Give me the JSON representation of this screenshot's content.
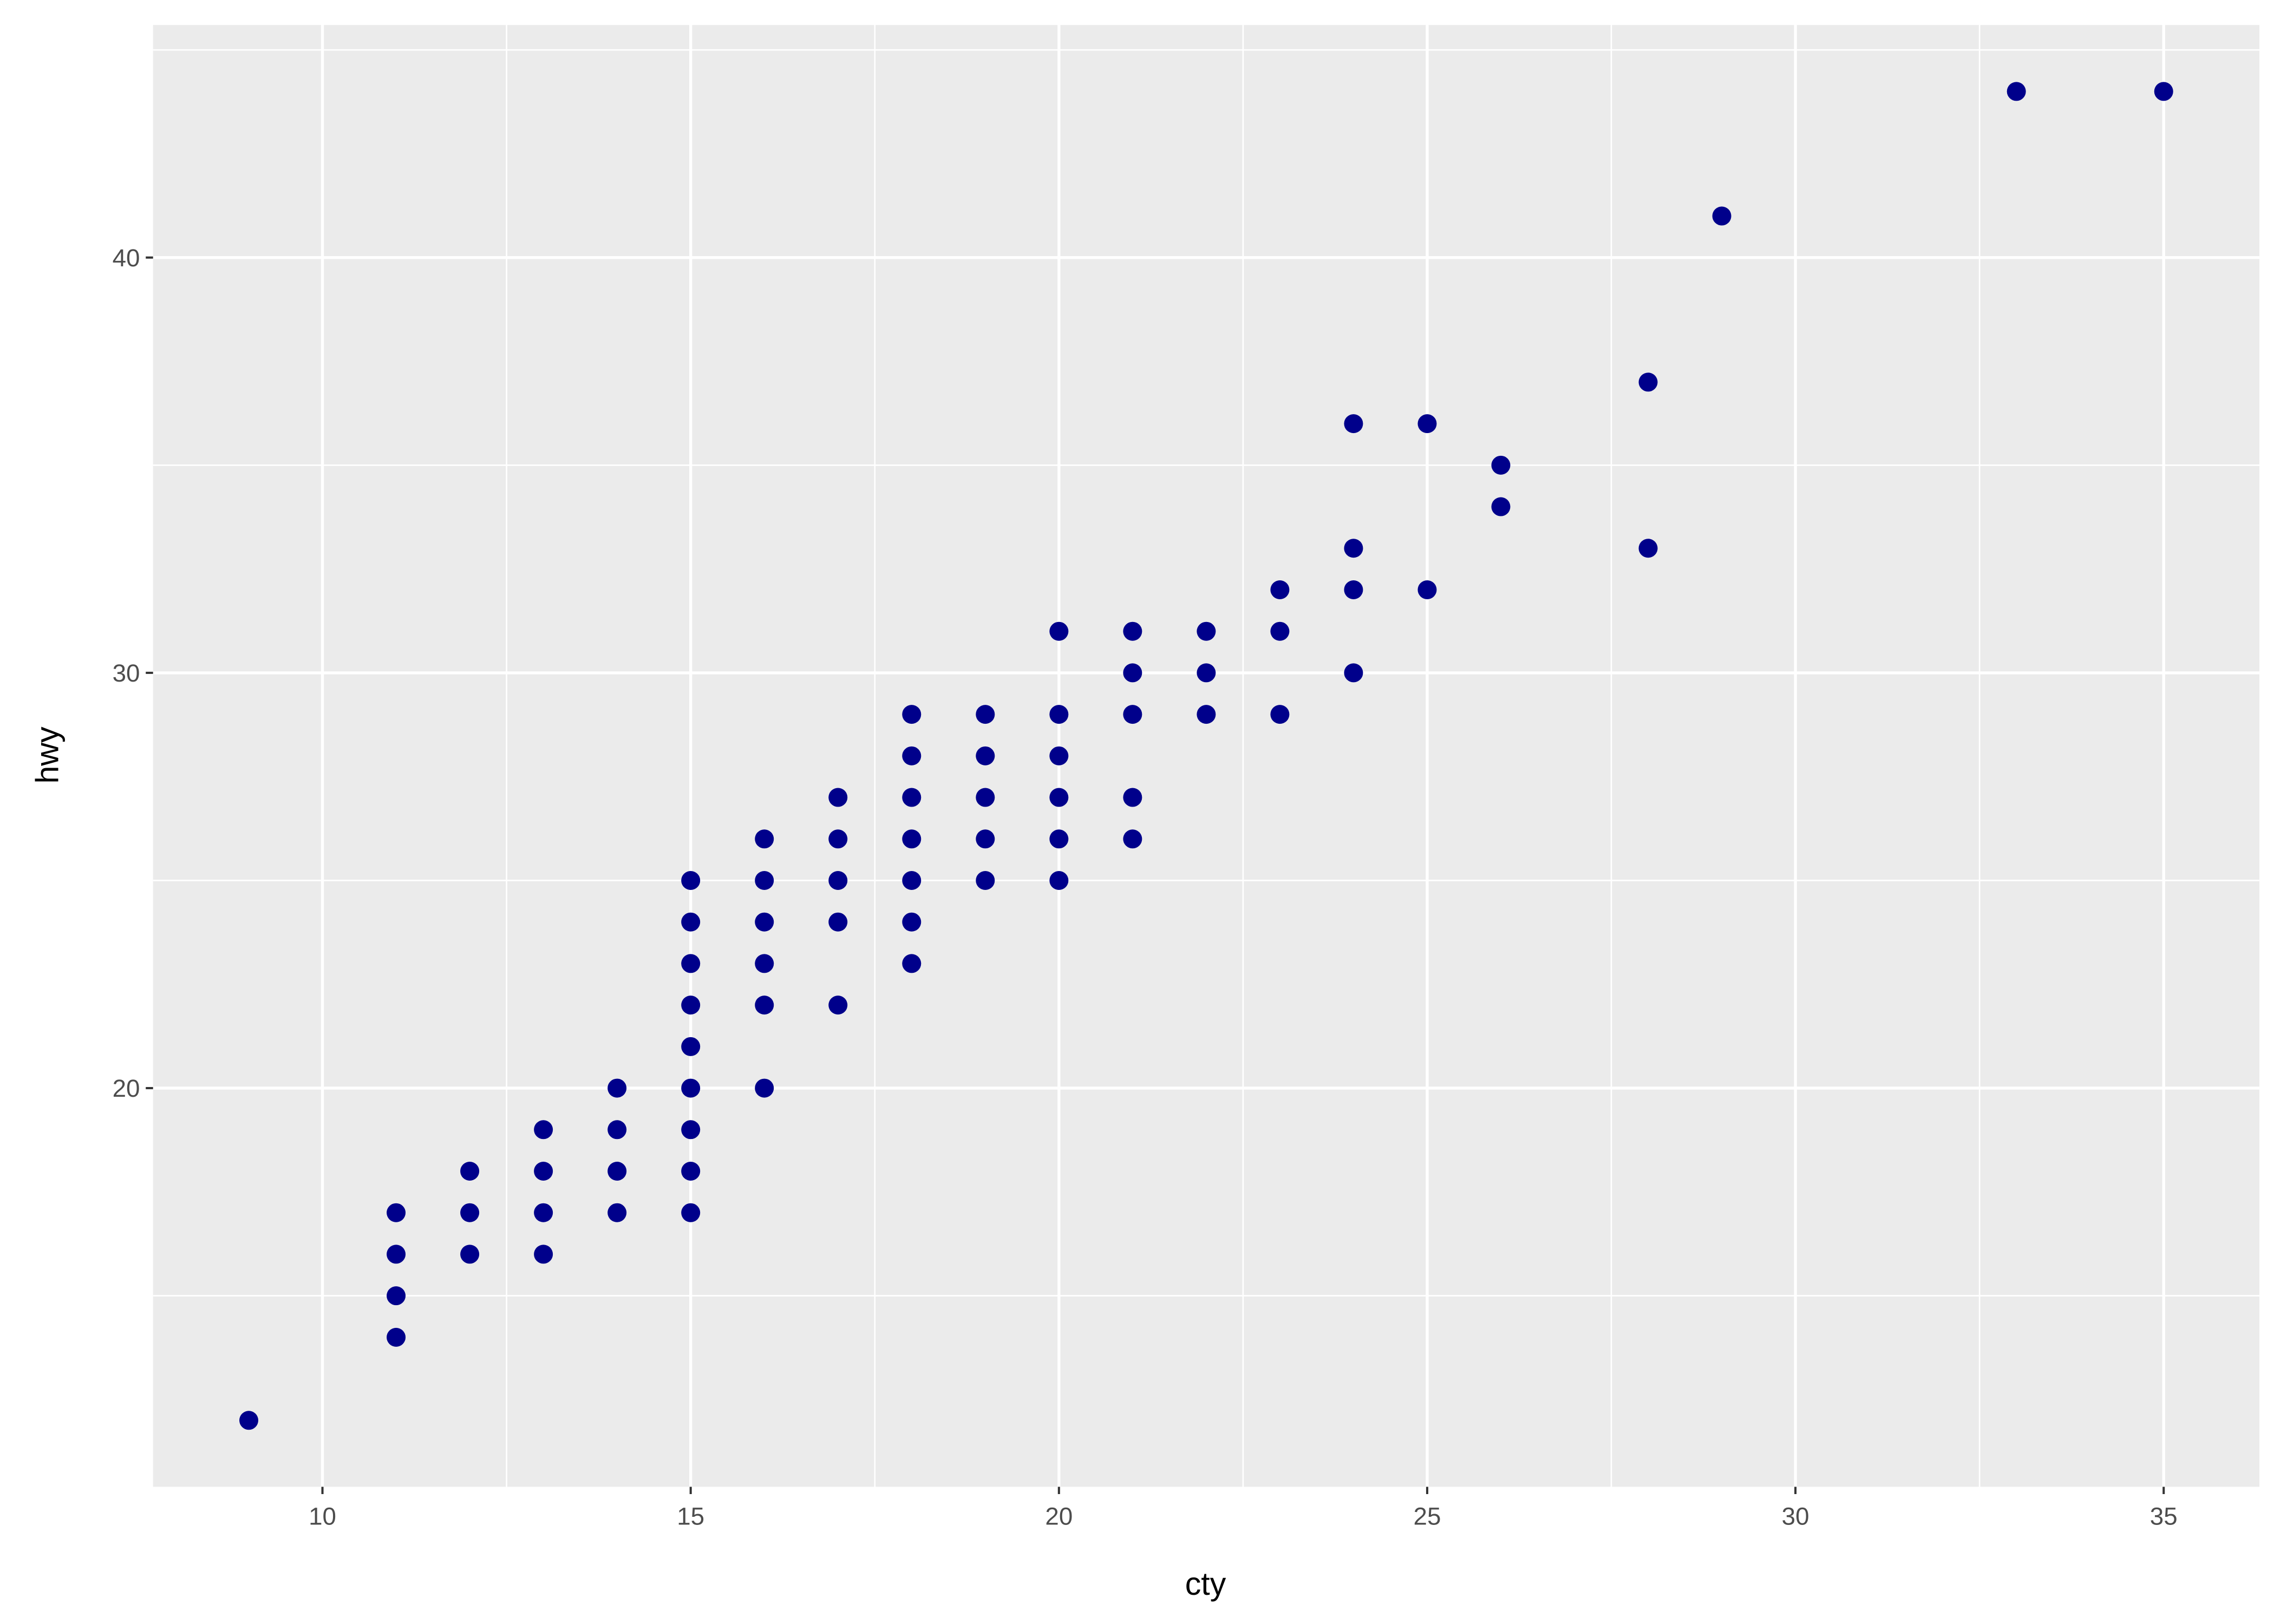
{
  "chart_data": {
    "type": "scatter",
    "title": "",
    "xlabel": "cty",
    "ylabel": "hwy",
    "xlim": [
      7.7,
      36.3
    ],
    "ylim": [
      10.4,
      45.6
    ],
    "x_ticks": [
      10,
      15,
      20,
      25,
      30,
      35
    ],
    "y_ticks": [
      20,
      30,
      40
    ],
    "grid": true,
    "point_color": "#00008B",
    "panel_background": "#EBEBEB",
    "grid_color": "#FFFFFF",
    "points": [
      [
        9,
        12
      ],
      [
        11,
        17
      ],
      [
        11,
        16
      ],
      [
        11,
        15
      ],
      [
        11,
        14
      ],
      [
        12,
        18
      ],
      [
        12,
        17
      ],
      [
        12,
        16
      ],
      [
        13,
        19
      ],
      [
        13,
        18
      ],
      [
        13,
        17
      ],
      [
        13,
        16
      ],
      [
        14,
        20
      ],
      [
        14,
        19
      ],
      [
        14,
        18
      ],
      [
        14,
        17
      ],
      [
        15,
        25
      ],
      [
        15,
        24
      ],
      [
        15,
        23
      ],
      [
        15,
        22
      ],
      [
        15,
        21
      ],
      [
        15,
        20
      ],
      [
        15,
        19
      ],
      [
        15,
        18
      ],
      [
        15,
        17
      ],
      [
        16,
        26
      ],
      [
        16,
        25
      ],
      [
        16,
        24
      ],
      [
        16,
        23
      ],
      [
        16,
        22
      ],
      [
        16,
        20
      ],
      [
        17,
        27
      ],
      [
        17,
        26
      ],
      [
        17,
        25
      ],
      [
        17,
        24
      ],
      [
        17,
        22
      ],
      [
        18,
        29
      ],
      [
        18,
        28
      ],
      [
        18,
        27
      ],
      [
        18,
        26
      ],
      [
        18,
        25
      ],
      [
        18,
        24
      ],
      [
        18,
        23
      ],
      [
        19,
        29
      ],
      [
        19,
        28
      ],
      [
        19,
        27
      ],
      [
        19,
        26
      ],
      [
        19,
        25
      ],
      [
        20,
        31
      ],
      [
        20,
        29
      ],
      [
        20,
        28
      ],
      [
        20,
        27
      ],
      [
        20,
        26
      ],
      [
        20,
        25
      ],
      [
        21,
        31
      ],
      [
        21,
        30
      ],
      [
        21,
        29
      ],
      [
        21,
        27
      ],
      [
        21,
        26
      ],
      [
        22,
        31
      ],
      [
        22,
        30
      ],
      [
        22,
        29
      ],
      [
        23,
        32
      ],
      [
        23,
        31
      ],
      [
        23,
        29
      ],
      [
        24,
        36
      ],
      [
        24,
        33
      ],
      [
        24,
        32
      ],
      [
        24,
        30
      ],
      [
        25,
        36
      ],
      [
        25,
        32
      ],
      [
        26,
        35
      ],
      [
        26,
        34
      ],
      [
        28,
        37
      ],
      [
        28,
        33
      ],
      [
        29,
        41
      ],
      [
        33,
        44
      ],
      [
        35,
        44
      ]
    ]
  }
}
